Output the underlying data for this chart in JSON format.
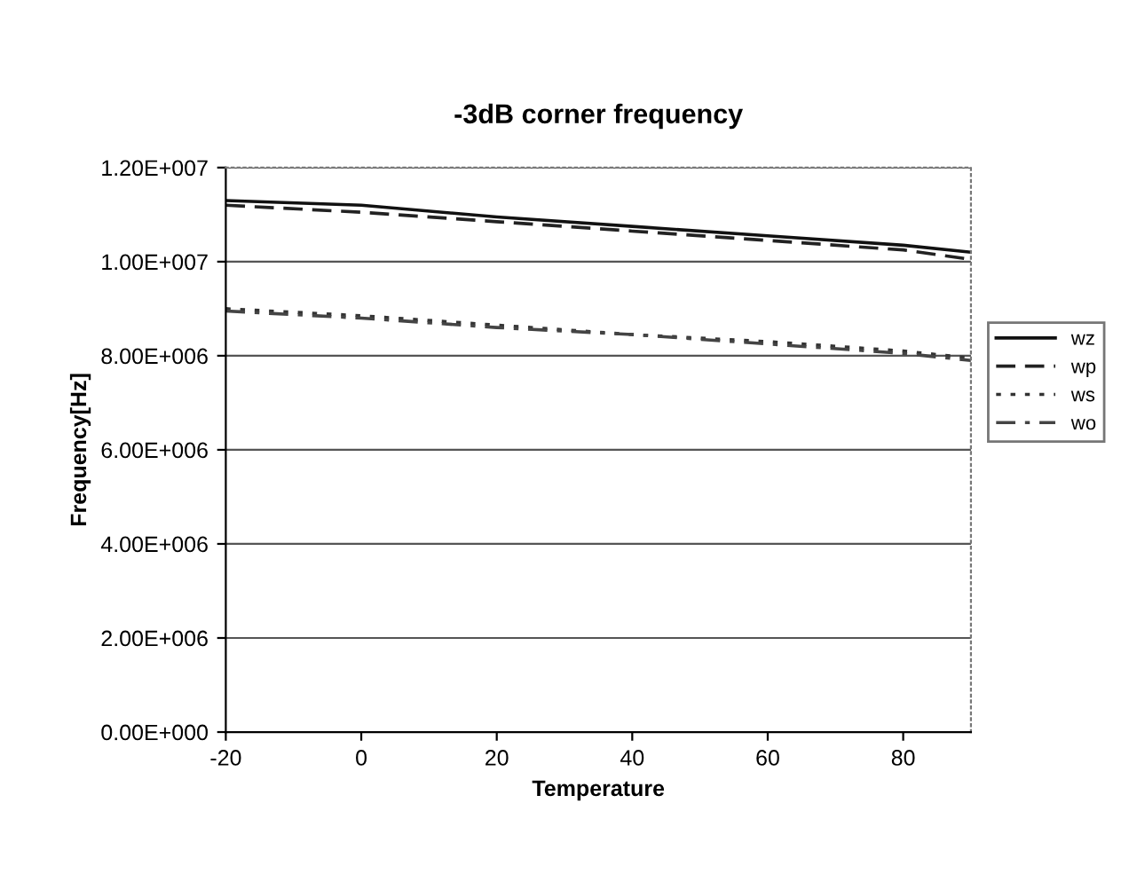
{
  "chart_data": {
    "type": "line",
    "title": "-3dB corner frequency",
    "xlabel": "Temperature",
    "ylabel": "Frequency[Hz]",
    "x": [
      -20,
      0,
      20,
      40,
      60,
      80,
      90
    ],
    "series": [
      {
        "name": "wz",
        "color": "#111111",
        "line_style": "solid",
        "values": [
          11300000,
          11200000,
          10950000,
          10750000,
          10550000,
          10350000,
          10200000
        ]
      },
      {
        "name": "wp",
        "color": "#222222",
        "line_style": "dashed",
        "values": [
          11200000,
          11050000,
          10850000,
          10650000,
          10450000,
          10250000,
          10050000
        ]
      },
      {
        "name": "ws",
        "color": "#333333",
        "line_style": "dotted",
        "values": [
          9000000,
          8850000,
          8650000,
          8450000,
          8300000,
          8100000,
          7950000
        ]
      },
      {
        "name": "wo",
        "color": "#444444",
        "line_style": "dashed",
        "values": [
          8950000,
          8800000,
          8600000,
          8450000,
          8250000,
          8050000,
          7900000
        ]
      }
    ],
    "xlim": [
      -20,
      90
    ],
    "xticks": [
      -20,
      0,
      20,
      40,
      60,
      80
    ],
    "ylim": [
      0,
      12000000
    ],
    "yticks": [
      {
        "value": 0,
        "label": "0.00E+000"
      },
      {
        "value": 2000000,
        "label": "2.00E+006"
      },
      {
        "value": 4000000,
        "label": "4.00E+006"
      },
      {
        "value": 6000000,
        "label": "6.00E+006"
      },
      {
        "value": 8000000,
        "label": "8.00E+006"
      },
      {
        "value": 10000000,
        "label": "1.00E+007"
      },
      {
        "value": 12000000,
        "label": "1.20E+007"
      }
    ],
    "grid": "y",
    "legend": "right",
    "marker": "none"
  }
}
